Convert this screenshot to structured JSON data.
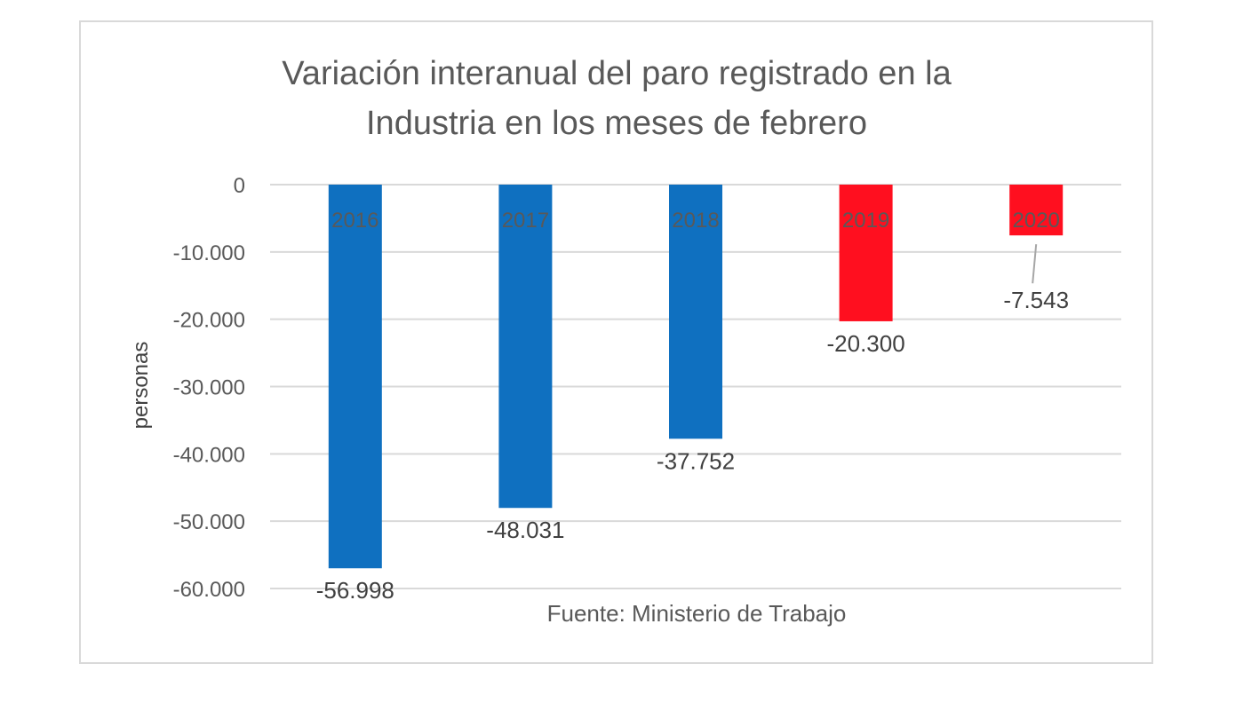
{
  "chart_data": {
    "type": "bar",
    "title_lines": [
      "Variación interanual del paro registrado en la",
      "Industria en los meses de febrero"
    ],
    "ylabel": "personas",
    "xlabel": "",
    "source": "Fuente: Ministerio de Trabajo",
    "categories": [
      "2016",
      "2017",
      "2018",
      "2019",
      "2020"
    ],
    "values": [
      -56998,
      -48031,
      -37752,
      -20300,
      -7543
    ],
    "value_labels": [
      "-56.998",
      "-48.031",
      "-37.752",
      "-20.300",
      "-7.543"
    ],
    "colors": [
      "#0f70c0",
      "#0f70c0",
      "#0f70c0",
      "#ff0f1f",
      "#ff0f1f"
    ],
    "ylim": [
      -60000,
      0
    ],
    "yticks": [
      0,
      -10000,
      -20000,
      -30000,
      -40000,
      -50000,
      -60000
    ],
    "ytick_labels": [
      "0",
      "-10.000",
      "-20.000",
      "-30.000",
      "-40.000",
      "-50.000",
      "-60.000"
    ],
    "grid": true,
    "legend": "none",
    "gridline_color": "#d9d9d9",
    "leader_color": "#a6a6a6"
  }
}
